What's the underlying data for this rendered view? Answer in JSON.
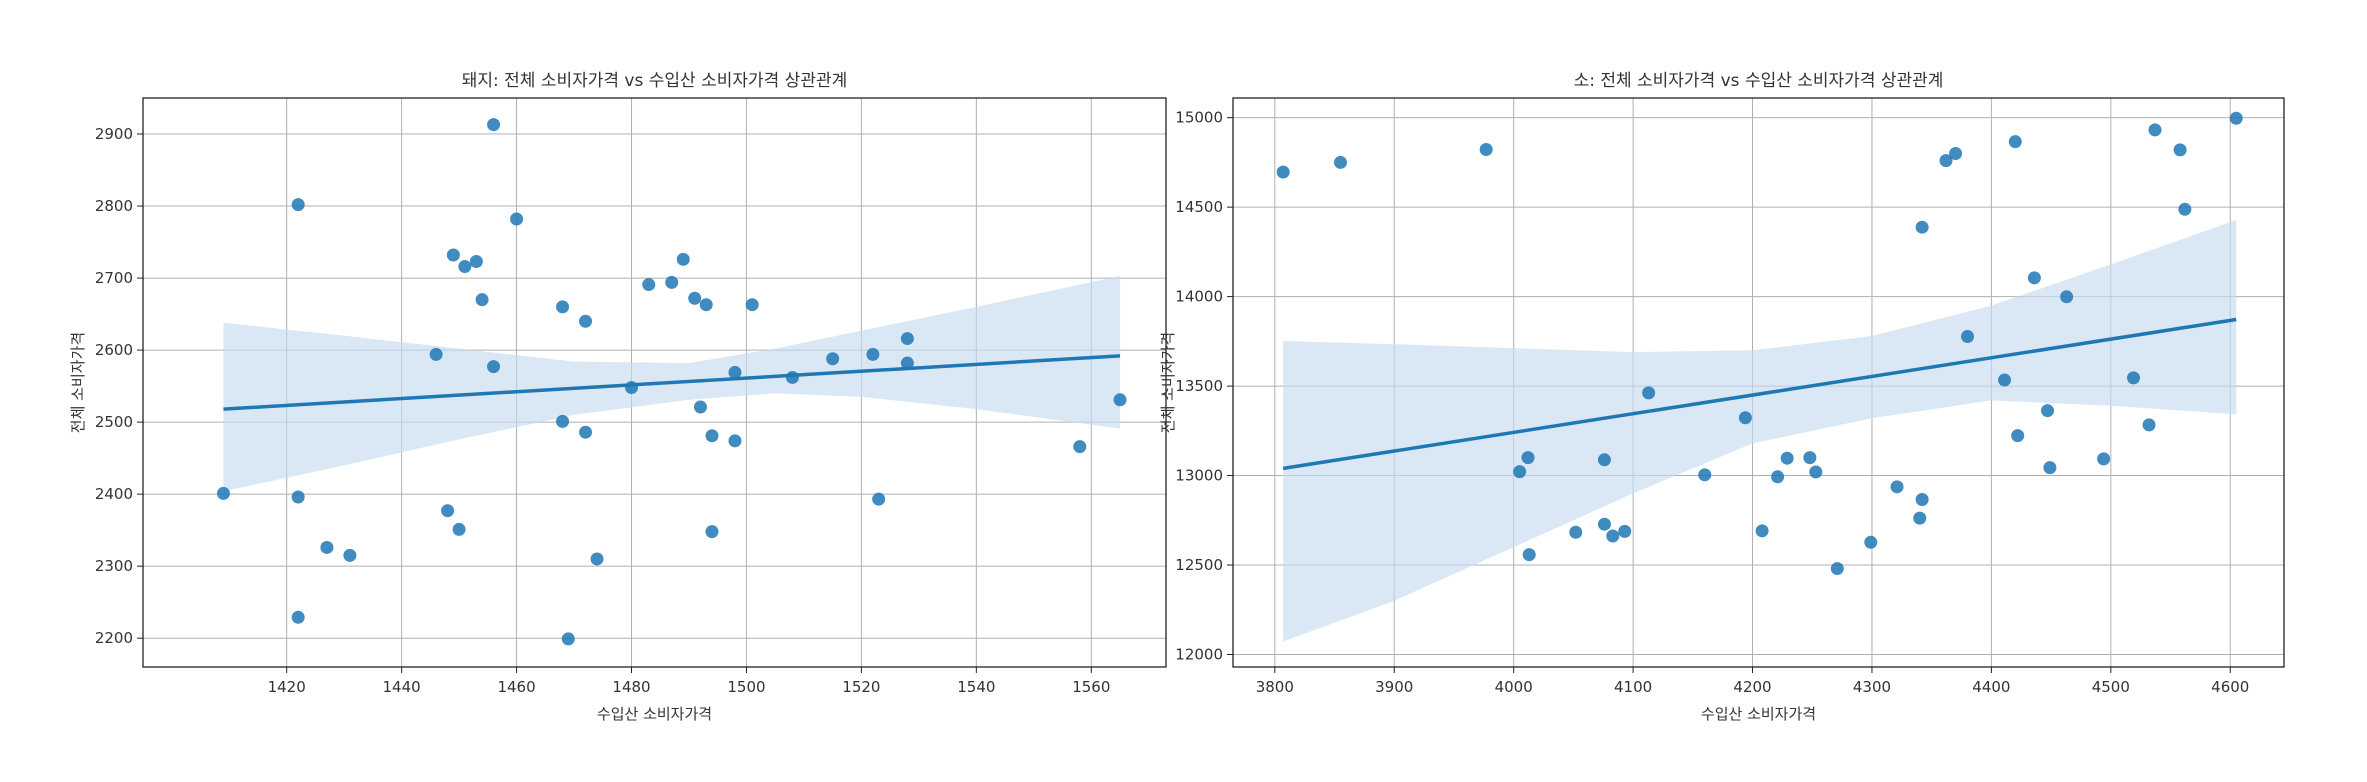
{
  "chart_data": [
    {
      "type": "scatter",
      "title": "돼지: 전체 소비자가격 vs 수입산 소비자가격 상관관계",
      "xlabel": "수입산 소비자가격",
      "ylabel": "전체 소비자가격",
      "xlim": [
        1395,
        1573
      ],
      "ylim": [
        2160,
        2950
      ],
      "xticks": [
        1420,
        1440,
        1460,
        1480,
        1500,
        1520,
        1540,
        1560
      ],
      "yticks": [
        2200,
        2300,
        2400,
        2500,
        2600,
        2700,
        2800,
        2900
      ],
      "grid": true,
      "point_color": "#1f77b4",
      "line_color": "#1f77b4",
      "band_color": "#c6dbef",
      "points": [
        [
          1409,
          2401
        ],
        [
          1422,
          2802
        ],
        [
          1422,
          2396
        ],
        [
          1422,
          2229
        ],
        [
          1427,
          2326
        ],
        [
          1431,
          2315
        ],
        [
          1446,
          2594
        ],
        [
          1448,
          2377
        ],
        [
          1449,
          2732
        ],
        [
          1450,
          2351
        ],
        [
          1451,
          2716
        ],
        [
          1453,
          2723
        ],
        [
          1454,
          2670
        ],
        [
          1456,
          2913
        ],
        [
          1456,
          2577
        ],
        [
          1460,
          2782
        ],
        [
          1468,
          2660
        ],
        [
          1468,
          2501
        ],
        [
          1469,
          2199
        ],
        [
          1472,
          2640
        ],
        [
          1472,
          2486
        ],
        [
          1474,
          2310
        ],
        [
          1480,
          2548
        ],
        [
          1483,
          2691
        ],
        [
          1487,
          2694
        ],
        [
          1489,
          2726
        ],
        [
          1491,
          2672
        ],
        [
          1492,
          2521
        ],
        [
          1493,
          2663
        ],
        [
          1494,
          2481
        ],
        [
          1494,
          2348
        ],
        [
          1498,
          2569
        ],
        [
          1498,
          2474
        ],
        [
          1501,
          2663
        ],
        [
          1508,
          2562
        ],
        [
          1515,
          2588
        ],
        [
          1522,
          2594
        ],
        [
          1523,
          2393
        ],
        [
          1528,
          2616
        ],
        [
          1528,
          2582
        ],
        [
          1558,
          2466
        ],
        [
          1565,
          2531
        ]
      ],
      "regression": {
        "x": [
          1409,
          1565
        ],
        "y": [
          2518,
          2592
        ]
      },
      "ci_band": {
        "x": [
          1409,
          1430,
          1450,
          1470,
          1490,
          1505,
          1520,
          1540,
          1565
        ],
        "upper": [
          2638,
          2620,
          2602,
          2584,
          2582,
          2602,
          2627,
          2660,
          2703
        ],
        "lower": [
          2404,
          2440,
          2476,
          2510,
          2531,
          2540,
          2535,
          2518,
          2491
        ]
      }
    },
    {
      "type": "scatter",
      "title": "소: 전체 소비자가격 vs 수입산 소비자가격 상관관계",
      "xlabel": "수입산 소비자가격",
      "ylabel": "전체 소비자가격",
      "xlim": [
        3765,
        4645
      ],
      "ylim": [
        11930,
        15110
      ],
      "xticks": [
        3800,
        3900,
        4000,
        4100,
        4200,
        4300,
        4400,
        4500,
        4600
      ],
      "yticks": [
        12000,
        12500,
        13000,
        13500,
        14000,
        14500,
        15000
      ],
      "grid": true,
      "point_color": "#1f77b4",
      "line_color": "#1f77b4",
      "band_color": "#c6dbef",
      "points": [
        [
          3807,
          14696
        ],
        [
          3855,
          14750
        ],
        [
          3977,
          14822
        ],
        [
          4005,
          13022
        ],
        [
          4012,
          13100
        ],
        [
          4013,
          12558
        ],
        [
          4052,
          12683
        ],
        [
          4076,
          12728
        ],
        [
          4076,
          13088
        ],
        [
          4083,
          12662
        ],
        [
          4093,
          12688
        ],
        [
          4113,
          13462
        ],
        [
          4160,
          13004
        ],
        [
          4194,
          13323
        ],
        [
          4208,
          12691
        ],
        [
          4221,
          12993
        ],
        [
          4229,
          13097
        ],
        [
          4248,
          13100
        ],
        [
          4253,
          13020
        ],
        [
          4271,
          12480
        ],
        [
          4299,
          12627
        ],
        [
          4321,
          12937
        ],
        [
          4340,
          12762
        ],
        [
          4342,
          12866
        ],
        [
          4342,
          14388
        ],
        [
          4362,
          14760
        ],
        [
          4370,
          14800
        ],
        [
          4380,
          13777
        ],
        [
          4411,
          13534
        ],
        [
          4420,
          14866
        ],
        [
          4422,
          13223
        ],
        [
          4436,
          14105
        ],
        [
          4447,
          13363
        ],
        [
          4449,
          13044
        ],
        [
          4463,
          13999
        ],
        [
          4494,
          13093
        ],
        [
          4519,
          13546
        ],
        [
          4532,
          13283
        ],
        [
          4537,
          14932
        ],
        [
          4558,
          14820
        ],
        [
          4562,
          14488
        ],
        [
          4605,
          14997
        ]
      ],
      "regression": {
        "x": [
          3807,
          4605
        ],
        "y": [
          13040,
          13872
        ]
      },
      "ci_band": {
        "x": [
          3807,
          3900,
          4000,
          4100,
          4200,
          4300,
          4400,
          4500,
          4605
        ],
        "upper": [
          13752,
          13734,
          13712,
          13690,
          13700,
          13780,
          13950,
          14180,
          14428
        ],
        "lower": [
          12072,
          12300,
          12600,
          12900,
          13180,
          13320,
          13420,
          13390,
          13342
        ]
      }
    }
  ]
}
